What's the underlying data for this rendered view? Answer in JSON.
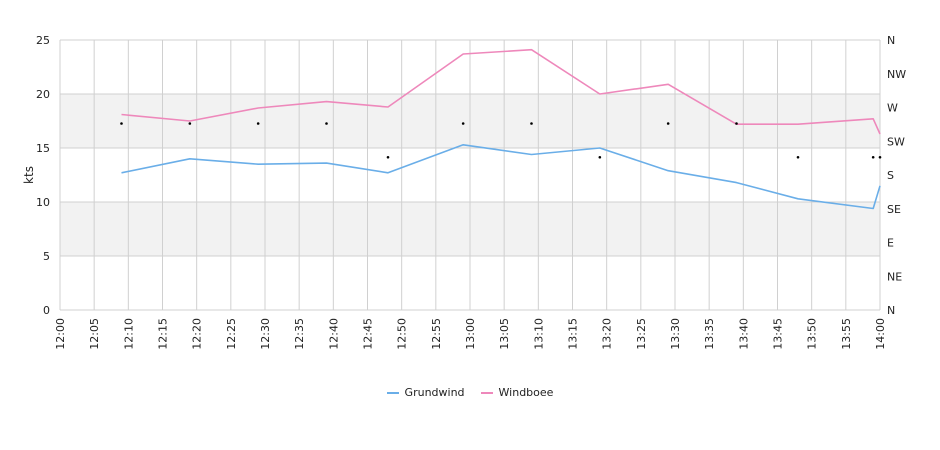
{
  "chart_data": {
    "type": "line",
    "xlabel": "",
    "ylabel": "kts",
    "ylim": [
      0,
      25
    ],
    "y_ticks": [
      "0",
      "5",
      "10",
      "15",
      "20",
      "25"
    ],
    "x_ticks": [
      "12:00",
      "12:05",
      "12:10",
      "12:15",
      "12:20",
      "12:25",
      "12:30",
      "12:35",
      "12:40",
      "12:45",
      "12:50",
      "12:55",
      "13:00",
      "13:05",
      "13:10",
      "13:15",
      "13:20",
      "13:25",
      "13:30",
      "13:35",
      "13:40",
      "13:45",
      "13:50",
      "13:55",
      "14:00"
    ],
    "right_axis_labels": [
      "N",
      "NE",
      "E",
      "SE",
      "S",
      "SW",
      "W",
      "NW",
      "N"
    ],
    "grid": true,
    "legend_position": "bottom",
    "series": [
      {
        "name": "Grundwind",
        "color": "#6aaee8",
        "x": [
          "12:09",
          "12:19",
          "12:29",
          "12:39",
          "12:48",
          "12:59",
          "13:09",
          "13:19",
          "13:29",
          "13:39",
          "13:48",
          "13:59",
          "14:00"
        ],
        "values": [
          12.7,
          14.0,
          13.5,
          13.6,
          12.7,
          15.3,
          14.4,
          15.0,
          12.9,
          11.8,
          10.3,
          9.4,
          11.5
        ]
      },
      {
        "name": "Windboee",
        "color": "#ee88bb",
        "x": [
          "12:09",
          "12:19",
          "12:29",
          "12:39",
          "12:48",
          "12:59",
          "13:09",
          "13:19",
          "13:29",
          "13:39",
          "13:48",
          "13:59",
          "14:00"
        ],
        "values": [
          18.1,
          17.5,
          18.7,
          19.3,
          18.8,
          23.7,
          24.1,
          20.0,
          20.9,
          17.2,
          17.2,
          17.7,
          16.3
        ]
      }
    ],
    "direction_points": {
      "x": [
        "12:09",
        "12:19",
        "12:29",
        "12:39",
        "12:48",
        "12:59",
        "13:09",
        "13:19",
        "13:29",
        "13:39",
        "13:48",
        "13:59",
        "14:00"
      ],
      "direction": [
        "W",
        "W",
        "W",
        "W",
        "SW",
        "W",
        "W",
        "SW",
        "W",
        "W",
        "SW",
        "SW",
        "SW"
      ]
    }
  }
}
